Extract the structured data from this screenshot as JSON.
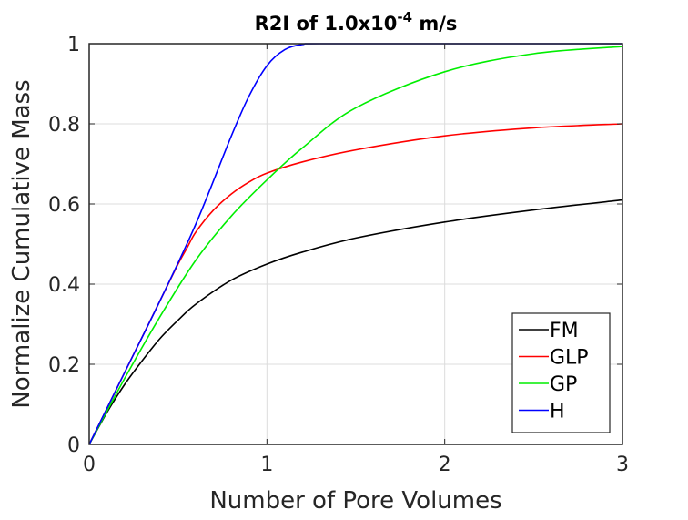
{
  "chart_data": {
    "type": "line",
    "title": {
      "main": "R2I of 1.0x10",
      "sup": "-4",
      "suffix": " m/s"
    },
    "xlabel": "Number of Pore Volumes",
    "ylabel": "Normalize Cumulative Mass",
    "xlim": [
      0,
      3
    ],
    "ylim": [
      0,
      1
    ],
    "xticks": [
      "0",
      "1",
      "2",
      "3"
    ],
    "yticks": [
      "0",
      "0.2",
      "0.4",
      "0.6",
      "0.8",
      "1"
    ],
    "grid": true,
    "legend": "bottom-right",
    "series": [
      {
        "name": "FM",
        "color": "#000000",
        "x": [
          0,
          0.1,
          0.2,
          0.3,
          0.4,
          0.5,
          0.6,
          0.8,
          1.0,
          1.2,
          1.5,
          2.0,
          2.5,
          3.0
        ],
        "y": [
          0,
          0.08,
          0.15,
          0.21,
          0.265,
          0.31,
          0.35,
          0.41,
          0.45,
          0.48,
          0.515,
          0.555,
          0.585,
          0.61
        ]
      },
      {
        "name": "GLP",
        "color": "#ff0000",
        "x": [
          0,
          0.2,
          0.4,
          0.5,
          0.55,
          0.6,
          0.7,
          0.8,
          0.9,
          1.0,
          1.2,
          1.5,
          2.0,
          2.5,
          3.0
        ],
        "y": [
          0,
          0.18,
          0.36,
          0.45,
          0.49,
          0.53,
          0.585,
          0.625,
          0.655,
          0.677,
          0.705,
          0.735,
          0.77,
          0.79,
          0.8
        ]
      },
      {
        "name": "GP",
        "color": "#00ee00",
        "x": [
          0,
          0.2,
          0.4,
          0.6,
          0.8,
          1.0,
          1.2,
          1.5,
          2.0,
          2.5,
          3.0
        ],
        "y": [
          0,
          0.165,
          0.32,
          0.46,
          0.57,
          0.66,
          0.74,
          0.84,
          0.93,
          0.975,
          0.993
        ]
      },
      {
        "name": "H",
        "color": "#0000ff",
        "x": [
          0,
          0.2,
          0.4,
          0.6,
          0.8,
          0.9,
          1.0,
          1.1,
          1.2,
          1.3,
          2.0,
          3.0
        ],
        "y": [
          0,
          0.18,
          0.36,
          0.55,
          0.77,
          0.87,
          0.945,
          0.985,
          0.998,
          1.0,
          1.0,
          1.0
        ]
      }
    ]
  }
}
